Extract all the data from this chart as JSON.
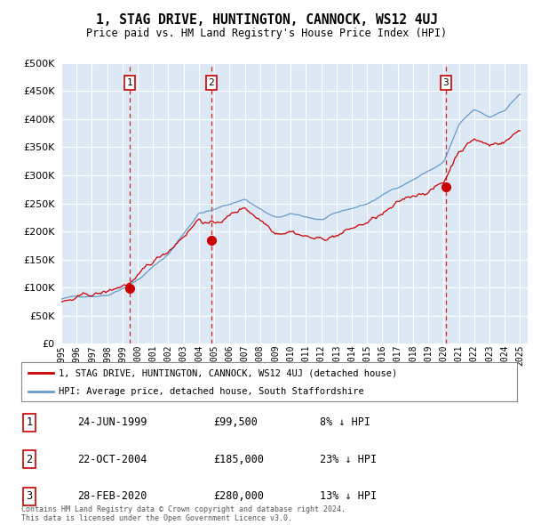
{
  "title": "1, STAG DRIVE, HUNTINGTON, CANNOCK, WS12 4UJ",
  "subtitle": "Price paid vs. HM Land Registry's House Price Index (HPI)",
  "legend_line1": "1, STAG DRIVE, HUNTINGTON, CANNOCK, WS12 4UJ (detached house)",
  "legend_line2": "HPI: Average price, detached house, South Staffordshire",
  "sale1_date": "24-JUN-1999",
  "sale1_price": 99500,
  "sale1_info": "8% ↓ HPI",
  "sale2_date": "22-OCT-2004",
  "sale2_price": 185000,
  "sale2_info": "23% ↓ HPI",
  "sale3_date": "28-FEB-2020",
  "sale3_price": 280000,
  "sale3_info": "13% ↓ HPI",
  "footer1": "Contains HM Land Registry data © Crown copyright and database right 2024.",
  "footer2": "This data is licensed under the Open Government Licence v3.0.",
  "sale_line_color": "#cc0000",
  "hpi_line_color": "#6699cc",
  "plot_bg_color": "#dce9f5",
  "ylim": [
    0,
    500000
  ],
  "yticks": [
    0,
    50000,
    100000,
    150000,
    200000,
    250000,
    300000,
    350000,
    400000,
    450000,
    500000
  ],
  "sale1_x": 1999.48,
  "sale2_x": 2004.81,
  "sale3_x": 2020.16,
  "xlim": [
    1995.0,
    2025.5
  ],
  "xtick_years": [
    1995,
    1996,
    1997,
    1998,
    1999,
    2000,
    2001,
    2002,
    2003,
    2004,
    2005,
    2006,
    2007,
    2008,
    2009,
    2010,
    2011,
    2012,
    2013,
    2014,
    2015,
    2016,
    2017,
    2018,
    2019,
    2020,
    2021,
    2022,
    2023,
    2024,
    2025
  ]
}
